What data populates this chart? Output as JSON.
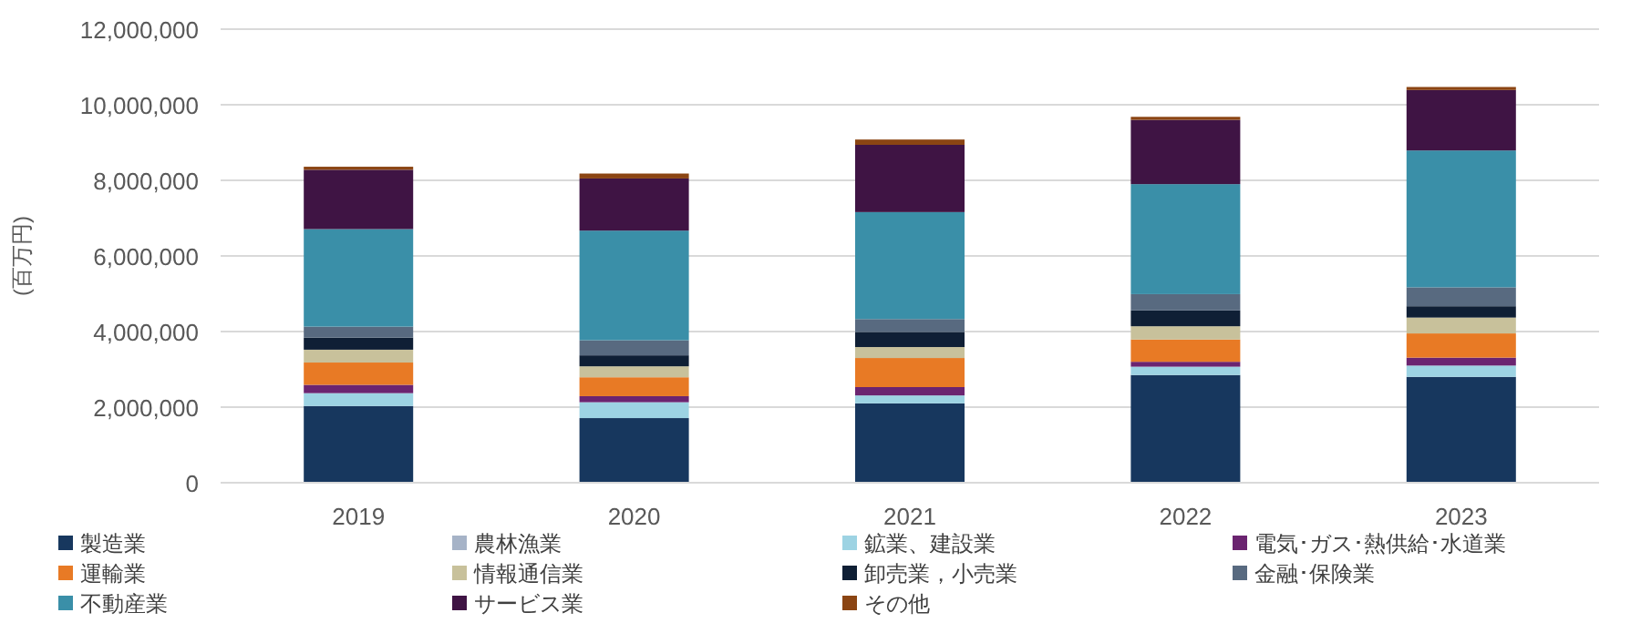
{
  "chart_data": {
    "type": "bar",
    "stacked": true,
    "ylabel": "(百万円)",
    "categories": [
      "2019",
      "2020",
      "2021",
      "2022",
      "2023"
    ],
    "ylim": [
      0,
      12000000
    ],
    "yticks": [
      {
        "value": 0,
        "label": "0"
      },
      {
        "value": 2000000,
        "label": "2,000,000"
      },
      {
        "value": 4000000,
        "label": "4,000,000"
      },
      {
        "value": 6000000,
        "label": "6,000,000"
      },
      {
        "value": 8000000,
        "label": "8,000,000"
      },
      {
        "value": 10000000,
        "label": "10,000,000"
      },
      {
        "value": 12000000,
        "label": "12,000,000"
      }
    ],
    "grid": "y",
    "legend": "bottom",
    "series": [
      {
        "name": "製造業",
        "color": "#17375e",
        "values": [
          2030000,
          1710000,
          2100000,
          2850000,
          2800000
        ]
      },
      {
        "name": "農林漁業",
        "color": "#a6b3c7",
        "values": [
          null,
          null,
          null,
          null,
          null
        ]
      },
      {
        "name": "鉱業、建設業",
        "color": "#9dd3e3",
        "values": [
          340000,
          420000,
          210000,
          220000,
          300000
        ]
      },
      {
        "name": "電気･ガス･熱供給･水道業",
        "color": "#6b2470",
        "values": [
          220000,
          160000,
          220000,
          130000,
          210000
        ]
      },
      {
        "name": "運輸業",
        "color": "#e87a25",
        "values": [
          590000,
          500000,
          770000,
          590000,
          640000
        ]
      },
      {
        "name": "情報通信業",
        "color": "#c8c19b",
        "values": [
          340000,
          290000,
          290000,
          350000,
          420000
        ]
      },
      {
        "name": "卸売業，小売業",
        "color": "#0f1f35",
        "values": [
          320000,
          290000,
          400000,
          420000,
          300000
        ]
      },
      {
        "name": "金融･保険業",
        "color": "#586a80",
        "values": [
          290000,
          400000,
          340000,
          430000,
          500000
        ]
      },
      {
        "name": "不動産業",
        "color": "#3a8fa8",
        "values": [
          2580000,
          2900000,
          2830000,
          2910000,
          3620000
        ]
      },
      {
        "name": "サービス業",
        "color": "#3f1444",
        "values": [
          1570000,
          1380000,
          1780000,
          1700000,
          1600000
        ]
      },
      {
        "name": "その他",
        "color": "#8b4513",
        "values": [
          80000,
          130000,
          140000,
          80000,
          80000
        ]
      }
    ]
  }
}
